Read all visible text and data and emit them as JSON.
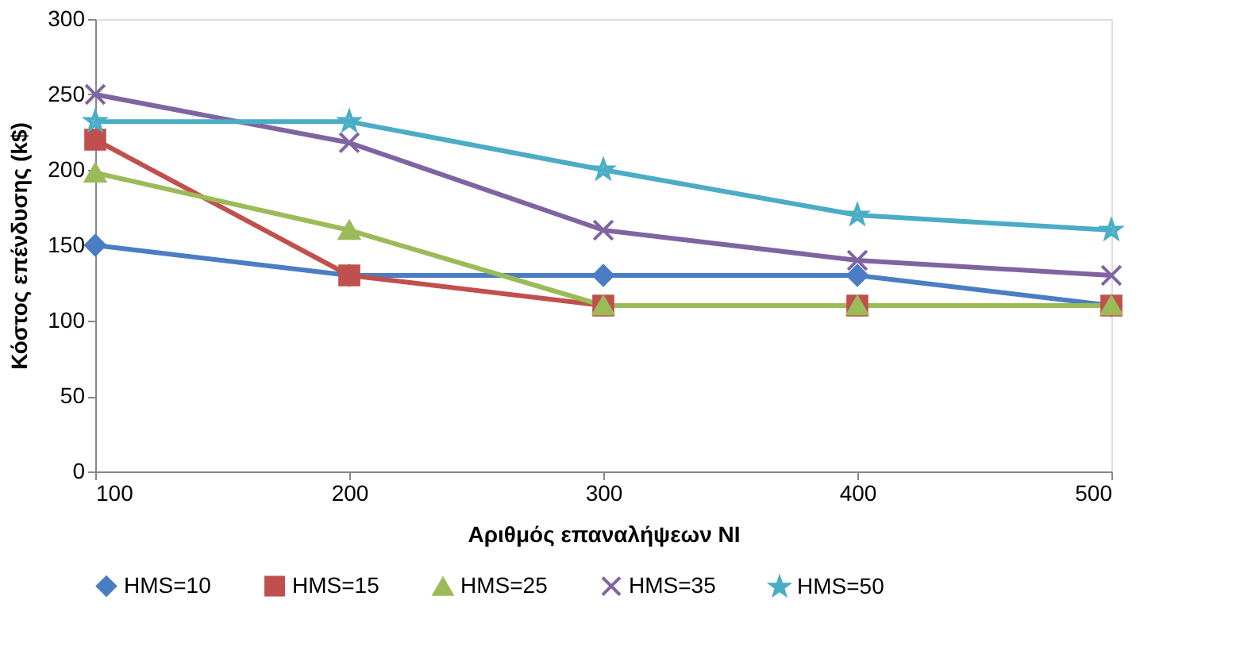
{
  "chart_data": {
    "type": "line",
    "xlabel": "Αριθμός επαναλήψεων NI",
    "ylabel": "Κόστος επένδυσης (k$)",
    "x": [
      100,
      200,
      300,
      400,
      500
    ],
    "xlim": [
      100,
      500
    ],
    "xticks": [
      100,
      200,
      300,
      400,
      500
    ],
    "ylim": [
      0,
      300
    ],
    "yticks": [
      0,
      50,
      100,
      150,
      200,
      250,
      300
    ],
    "grid": false,
    "legend": "bottom",
    "series": [
      {
        "name": "HMS=10",
        "color": "#4a7dc3",
        "marker": "diamond",
        "values": [
          150,
          130,
          130,
          130,
          110
        ]
      },
      {
        "name": "HMS=15",
        "color": "#c0504d",
        "marker": "square",
        "values": [
          220,
          130,
          110,
          110,
          110
        ]
      },
      {
        "name": "HMS=25",
        "color": "#9bbb59",
        "marker": "triangle",
        "values": [
          198,
          160,
          110,
          110,
          110
        ]
      },
      {
        "name": "HMS=35",
        "color": "#8064a2",
        "marker": "cross",
        "values": [
          250,
          218,
          160,
          140,
          130
        ]
      },
      {
        "name": "HMS=50",
        "color": "#4bacc6",
        "marker": "star",
        "values": [
          232,
          232,
          200,
          170,
          160
        ]
      }
    ]
  }
}
